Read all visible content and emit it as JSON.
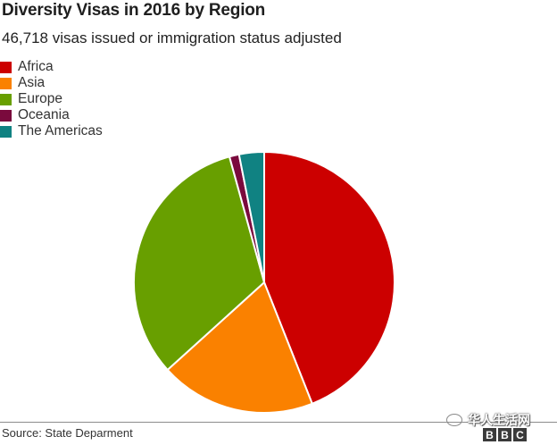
{
  "chart_data": {
    "type": "pie",
    "title": "Diversity Visas in 2016 by Region",
    "subtitle": "46,718 visas issued or immigration status adjusted",
    "categories": [
      "Africa",
      "Asia",
      "Europe",
      "Oceania",
      "The Americas"
    ],
    "values": [
      44.0,
      19.3,
      32.4,
      1.2,
      3.1
    ],
    "colors": [
      "#cc0000",
      "#fa8100",
      "#689f00",
      "#7a0a3d",
      "#108282"
    ],
    "legend_position": "top-left"
  },
  "source": "Source: State Deparment",
  "watermark": {
    "icon": "wechat-icon",
    "text": "华人生活网"
  },
  "logo": {
    "letters": [
      "B",
      "B",
      "C"
    ]
  }
}
